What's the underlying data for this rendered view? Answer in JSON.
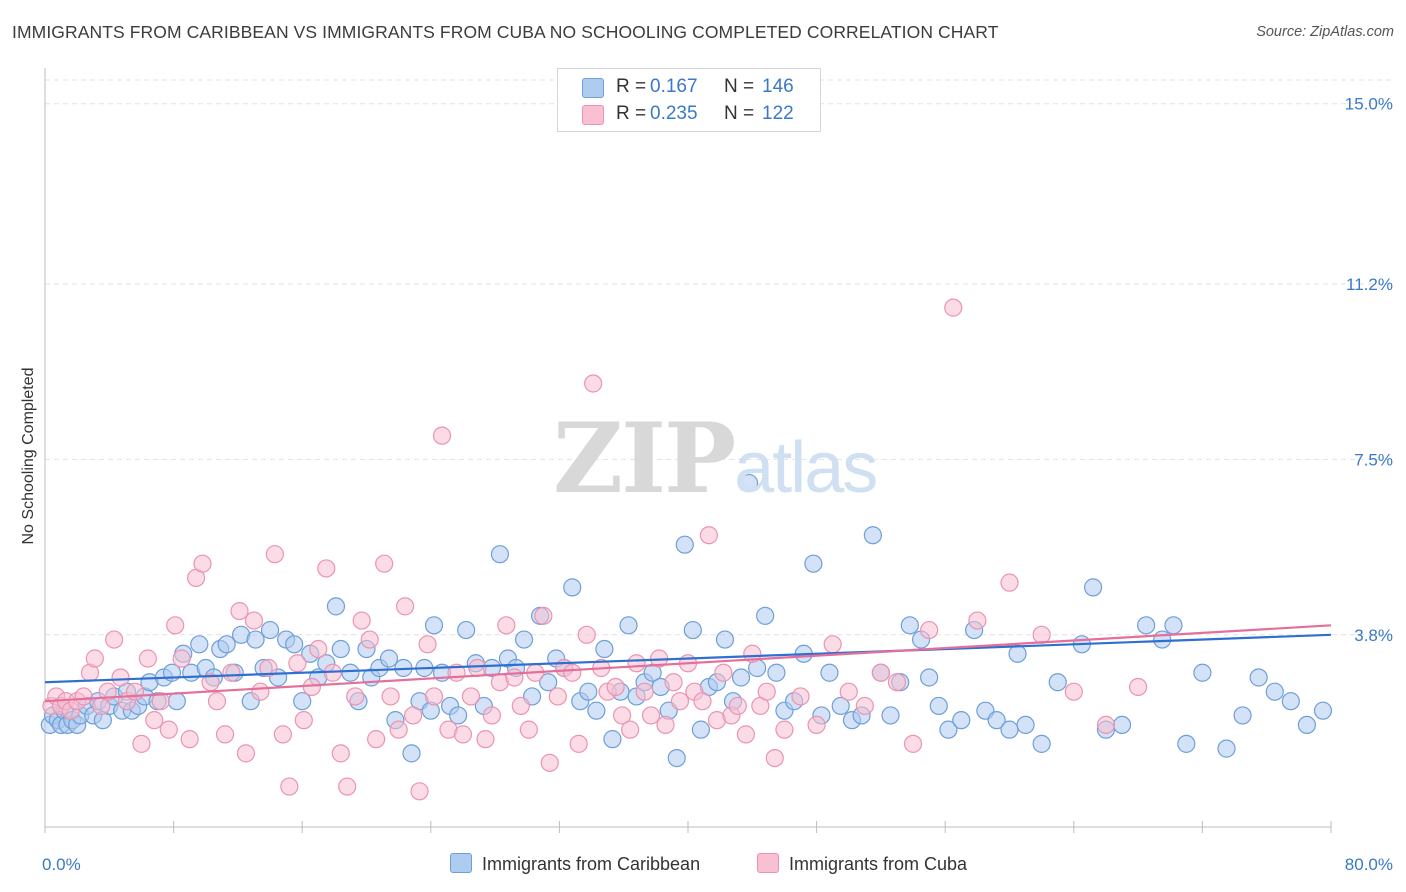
{
  "header": {
    "title": "IMMIGRANTS FROM CARIBBEAN VS IMMIGRANTS FROM CUBA NO SCHOOLING COMPLETED CORRELATION CHART",
    "source": "Source: ZipAtlas.com"
  },
  "watermark": {
    "zip": "ZIP",
    "atlas": "atlas"
  },
  "legend": {
    "rows": [
      {
        "r_label": "R =",
        "r_value": "0.167",
        "n_label": "N =",
        "n_value": "146"
      },
      {
        "r_label": "R =",
        "r_value": "0.235",
        "n_label": "N =",
        "n_value": "122"
      }
    ]
  },
  "colors": {
    "blue_fill": "#aecbf0",
    "blue_stroke": "#6e9fd8",
    "blue_line": "#2f6fd0",
    "pink_fill": "#f8c0d2",
    "pink_stroke": "#ec93b1",
    "pink_line": "#e56f9a",
    "axis_text": "#3a78c9",
    "grid": "#e2e2e2"
  },
  "chart_data": {
    "type": "scatter",
    "title": "IMMIGRANTS FROM CARIBBEAN VS IMMIGRANTS FROM CUBA NO SCHOOLING COMPLETED CORRELATION CHART",
    "xlabel": "",
    "ylabel": "No Schooling Completed",
    "xlim": [
      0,
      80
    ],
    "ylim": [
      0,
      15.5
    ],
    "x_tick_labels": [
      "0.0%",
      "80.0%"
    ],
    "y_ticks": [
      3.8,
      7.5,
      11.2,
      15.0
    ],
    "y_tick_labels": [
      "3.8%",
      "7.5%",
      "11.2%",
      "15.0%"
    ],
    "grid": true,
    "legend_position": "top-center",
    "series": [
      {
        "name": "Immigrants from Caribbean",
        "color": "#6e9fd8",
        "R": 0.167,
        "N": 146,
        "trend": {
          "x": [
            0,
            80
          ],
          "y": [
            2.8,
            3.8
          ]
        },
        "points": [
          [
            0.3,
            1.9
          ],
          [
            0.5,
            2.1
          ],
          [
            0.8,
            2.0
          ],
          [
            1.0,
            1.9
          ],
          [
            1.2,
            2.2
          ],
          [
            1.4,
            1.9
          ],
          [
            1.7,
            2.0
          ],
          [
            2.0,
            1.9
          ],
          [
            2.2,
            2.1
          ],
          [
            2.6,
            2.3
          ],
          [
            3.0,
            2.1
          ],
          [
            3.3,
            2.4
          ],
          [
            3.6,
            2.0
          ],
          [
            4.0,
            2.3
          ],
          [
            4.3,
            2.5
          ],
          [
            4.8,
            2.2
          ],
          [
            5.1,
            2.6
          ],
          [
            5.4,
            2.2
          ],
          [
            5.8,
            2.3
          ],
          [
            6.2,
            2.5
          ],
          [
            6.5,
            2.8
          ],
          [
            7.0,
            2.4
          ],
          [
            7.4,
            2.9
          ],
          [
            7.9,
            3.0
          ],
          [
            8.2,
            2.4
          ],
          [
            8.6,
            3.4
          ],
          [
            9.1,
            3.0
          ],
          [
            9.6,
            3.6
          ],
          [
            10.0,
            3.1
          ],
          [
            10.5,
            2.9
          ],
          [
            10.9,
            3.5
          ],
          [
            11.3,
            3.6
          ],
          [
            11.8,
            3.0
          ],
          [
            12.2,
            3.8
          ],
          [
            12.8,
            2.4
          ],
          [
            13.1,
            3.7
          ],
          [
            13.6,
            3.1
          ],
          [
            14.0,
            3.9
          ],
          [
            14.5,
            2.9
          ],
          [
            15.0,
            3.7
          ],
          [
            15.5,
            3.6
          ],
          [
            16.0,
            2.4
          ],
          [
            16.5,
            3.4
          ],
          [
            17.0,
            2.9
          ],
          [
            17.5,
            3.2
          ],
          [
            18.1,
            4.4
          ],
          [
            18.4,
            3.5
          ],
          [
            19.0,
            3.0
          ],
          [
            19.5,
            2.4
          ],
          [
            20.0,
            3.5
          ],
          [
            20.3,
            2.9
          ],
          [
            20.8,
            3.1
          ],
          [
            21.4,
            3.3
          ],
          [
            21.8,
            2.0
          ],
          [
            22.3,
            3.1
          ],
          [
            22.8,
            1.3
          ],
          [
            23.3,
            2.4
          ],
          [
            23.6,
            3.1
          ],
          [
            24.2,
            4.0
          ],
          [
            24.7,
            3.0
          ],
          [
            25.2,
            2.3
          ],
          [
            25.7,
            2.1
          ],
          [
            26.2,
            3.9
          ],
          [
            26.8,
            3.2
          ],
          [
            27.3,
            2.3
          ],
          [
            27.8,
            3.1
          ],
          [
            28.3,
            5.5
          ],
          [
            28.8,
            3.3
          ],
          [
            29.3,
            3.1
          ],
          [
            29.8,
            3.7
          ],
          [
            30.3,
            2.5
          ],
          [
            30.8,
            4.2
          ],
          [
            31.3,
            2.8
          ],
          [
            31.8,
            3.3
          ],
          [
            32.3,
            3.1
          ],
          [
            32.8,
            4.8
          ],
          [
            33.3,
            2.4
          ],
          [
            33.8,
            2.6
          ],
          [
            34.3,
            2.2
          ],
          [
            34.8,
            3.5
          ],
          [
            35.3,
            1.6
          ],
          [
            35.8,
            2.6
          ],
          [
            36.3,
            4.0
          ],
          [
            36.8,
            2.5
          ],
          [
            37.3,
            2.8
          ],
          [
            37.8,
            3.0
          ],
          [
            38.3,
            2.7
          ],
          [
            38.8,
            2.2
          ],
          [
            39.3,
            1.2
          ],
          [
            39.8,
            5.7
          ],
          [
            40.3,
            3.9
          ],
          [
            40.8,
            1.8
          ],
          [
            41.3,
            2.7
          ],
          [
            41.8,
            2.8
          ],
          [
            42.3,
            3.7
          ],
          [
            42.8,
            2.4
          ],
          [
            43.3,
            2.9
          ],
          [
            43.8,
            7.0
          ],
          [
            44.3,
            3.1
          ],
          [
            44.8,
            4.2
          ],
          [
            45.5,
            3.0
          ],
          [
            46.0,
            2.2
          ],
          [
            46.6,
            2.4
          ],
          [
            47.2,
            3.4
          ],
          [
            47.8,
            5.3
          ],
          [
            48.3,
            2.1
          ],
          [
            48.8,
            3.0
          ],
          [
            49.5,
            2.3
          ],
          [
            50.2,
            2.0
          ],
          [
            50.8,
            2.1
          ],
          [
            51.5,
            5.9
          ],
          [
            52.0,
            3.0
          ],
          [
            52.6,
            2.1
          ],
          [
            53.2,
            2.8
          ],
          [
            53.8,
            4.0
          ],
          [
            54.5,
            3.7
          ],
          [
            55.0,
            2.9
          ],
          [
            55.6,
            2.3
          ],
          [
            56.2,
            1.8
          ],
          [
            57.0,
            2.0
          ],
          [
            57.8,
            3.9
          ],
          [
            58.5,
            2.2
          ],
          [
            59.2,
            2.0
          ],
          [
            60.0,
            1.8
          ],
          [
            61.0,
            1.9
          ],
          [
            62.0,
            1.5
          ],
          [
            63.0,
            2.8
          ],
          [
            64.5,
            3.6
          ],
          [
            65.2,
            4.8
          ],
          [
            66.0,
            1.8
          ],
          [
            67.0,
            1.9
          ],
          [
            68.5,
            4.0
          ],
          [
            69.5,
            3.7
          ],
          [
            70.2,
            4.0
          ],
          [
            71.0,
            1.5
          ],
          [
            72.0,
            3.0
          ],
          [
            73.5,
            1.4
          ],
          [
            74.5,
            2.1
          ],
          [
            75.5,
            2.9
          ],
          [
            76.5,
            2.6
          ],
          [
            77.5,
            2.4
          ],
          [
            78.5,
            1.9
          ],
          [
            79.5,
            2.2
          ],
          [
            60.5,
            3.4
          ],
          [
            24.0,
            2.2
          ]
        ]
      },
      {
        "name": "Immigrants from Cuba",
        "color": "#ec93b1",
        "R": 0.235,
        "N": 122,
        "trend": {
          "x": [
            0,
            80
          ],
          "y": [
            2.4,
            4.0
          ]
        },
        "points": [
          [
            0.4,
            2.3
          ],
          [
            0.7,
            2.5
          ],
          [
            1.0,
            2.3
          ],
          [
            1.3,
            2.4
          ],
          [
            1.6,
            2.2
          ],
          [
            2.0,
            2.4
          ],
          [
            2.4,
            2.5
          ],
          [
            2.8,
            3.0
          ],
          [
            3.1,
            3.3
          ],
          [
            3.5,
            2.3
          ],
          [
            3.9,
            2.6
          ],
          [
            4.3,
            3.7
          ],
          [
            4.7,
            2.9
          ],
          [
            5.1,
            2.4
          ],
          [
            5.6,
            2.6
          ],
          [
            6.0,
            1.5
          ],
          [
            6.4,
            3.3
          ],
          [
            6.8,
            2.0
          ],
          [
            7.2,
            2.4
          ],
          [
            7.7,
            1.8
          ],
          [
            8.1,
            4.0
          ],
          [
            8.5,
            3.3
          ],
          [
            9.0,
            1.6
          ],
          [
            9.4,
            5.0
          ],
          [
            9.8,
            5.3
          ],
          [
            10.3,
            2.8
          ],
          [
            10.7,
            2.4
          ],
          [
            11.2,
            1.7
          ],
          [
            11.6,
            3.0
          ],
          [
            12.1,
            4.3
          ],
          [
            12.5,
            1.3
          ],
          [
            13.0,
            4.1
          ],
          [
            13.4,
            2.6
          ],
          [
            13.9,
            3.1
          ],
          [
            14.3,
            5.5
          ],
          [
            14.8,
            1.7
          ],
          [
            15.2,
            0.6
          ],
          [
            15.7,
            3.2
          ],
          [
            16.1,
            2.0
          ],
          [
            16.6,
            2.7
          ],
          [
            17.0,
            3.5
          ],
          [
            17.5,
            5.2
          ],
          [
            17.9,
            3.0
          ],
          [
            18.4,
            1.3
          ],
          [
            18.8,
            0.6
          ],
          [
            19.3,
            2.5
          ],
          [
            19.7,
            4.1
          ],
          [
            20.2,
            3.7
          ],
          [
            20.6,
            1.6
          ],
          [
            21.1,
            5.3
          ],
          [
            21.5,
            2.5
          ],
          [
            22.0,
            1.8
          ],
          [
            22.4,
            4.4
          ],
          [
            22.9,
            2.1
          ],
          [
            23.3,
            0.5
          ],
          [
            23.8,
            3.6
          ],
          [
            24.2,
            2.5
          ],
          [
            24.7,
            8.0
          ],
          [
            25.1,
            1.8
          ],
          [
            25.6,
            3.0
          ],
          [
            26.0,
            1.7
          ],
          [
            26.5,
            2.5
          ],
          [
            26.9,
            3.1
          ],
          [
            27.4,
            1.6
          ],
          [
            27.8,
            2.1
          ],
          [
            28.3,
            2.8
          ],
          [
            28.7,
            4.0
          ],
          [
            29.2,
            2.9
          ],
          [
            29.6,
            2.3
          ],
          [
            30.1,
            1.8
          ],
          [
            30.5,
            3.0
          ],
          [
            31.0,
            4.2
          ],
          [
            31.4,
            1.1
          ],
          [
            31.9,
            2.5
          ],
          [
            32.3,
            3.1
          ],
          [
            32.8,
            3.0
          ],
          [
            33.2,
            1.5
          ],
          [
            33.7,
            3.8
          ],
          [
            34.1,
            9.1
          ],
          [
            34.6,
            3.1
          ],
          [
            35.0,
            2.6
          ],
          [
            35.5,
            2.7
          ],
          [
            35.9,
            2.1
          ],
          [
            36.4,
            1.8
          ],
          [
            36.8,
            3.2
          ],
          [
            37.3,
            2.6
          ],
          [
            37.7,
            2.1
          ],
          [
            38.2,
            3.3
          ],
          [
            38.6,
            1.9
          ],
          [
            39.1,
            2.8
          ],
          [
            39.5,
            2.4
          ],
          [
            40.0,
            3.2
          ],
          [
            40.4,
            2.6
          ],
          [
            40.9,
            2.4
          ],
          [
            41.3,
            5.9
          ],
          [
            41.8,
            2.0
          ],
          [
            42.2,
            3.0
          ],
          [
            42.7,
            2.1
          ],
          [
            43.1,
            2.3
          ],
          [
            43.6,
            1.7
          ],
          [
            44.0,
            3.4
          ],
          [
            44.5,
            2.3
          ],
          [
            44.9,
            2.6
          ],
          [
            45.4,
            1.2
          ],
          [
            46.0,
            1.8
          ],
          [
            47.0,
            2.5
          ],
          [
            48.0,
            1.9
          ],
          [
            49.0,
            3.6
          ],
          [
            50.0,
            2.6
          ],
          [
            51.0,
            2.3
          ],
          [
            52.0,
            3.0
          ],
          [
            53.0,
            2.8
          ],
          [
            54.0,
            1.5
          ],
          [
            55.0,
            3.9
          ],
          [
            56.5,
            10.7
          ],
          [
            58.0,
            4.1
          ],
          [
            60.0,
            4.9
          ],
          [
            62.0,
            3.8
          ],
          [
            64.0,
            2.6
          ],
          [
            66.0,
            1.9
          ],
          [
            68.0,
            2.7
          ]
        ]
      }
    ]
  },
  "bottom_legend": [
    {
      "label": "Immigrants from Caribbean"
    },
    {
      "label": "Immigrants from Cuba"
    }
  ]
}
